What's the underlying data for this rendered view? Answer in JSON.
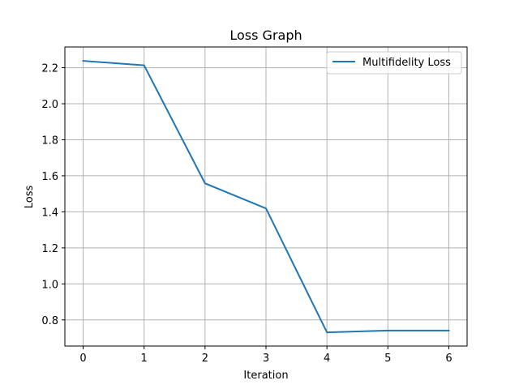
{
  "chart_data": {
    "type": "line",
    "title": "Loss Graph",
    "xlabel": "Iteration",
    "ylabel": "Loss",
    "x": [
      0,
      1,
      2,
      3,
      4,
      5,
      6
    ],
    "series": [
      {
        "name": "Multifidelity Loss",
        "values": [
          2.238,
          2.213,
          1.558,
          1.419,
          0.731,
          0.741,
          0.741
        ],
        "color": "#1f77b4"
      }
    ],
    "xlim": [
      -0.3,
      6.3
    ],
    "ylim": [
      0.655,
      2.315
    ],
    "xticks": [
      0,
      1,
      2,
      3,
      4,
      5,
      6
    ],
    "xtick_labels": [
      "0",
      "1",
      "2",
      "3",
      "4",
      "5",
      "6"
    ],
    "yticks": [
      0.8,
      1.0,
      1.2,
      1.4,
      1.6,
      1.8,
      2.0,
      2.2
    ],
    "ytick_labels": [
      "0.8",
      "1.0",
      "1.2",
      "1.4",
      "1.6",
      "1.8",
      "2.0",
      "2.2"
    ],
    "grid": true,
    "legend_position": "top-right"
  }
}
